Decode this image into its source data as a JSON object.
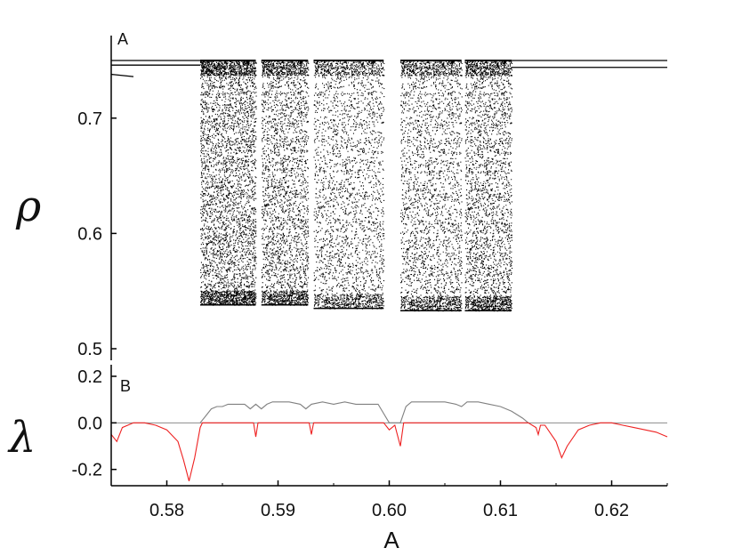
{
  "chart_data": [
    {
      "panel": "A",
      "type": "scatter",
      "title": "",
      "xlabel": "A",
      "ylabel": "ρ",
      "xlim": [
        0.575,
        0.625
      ],
      "ylim": [
        0.5,
        0.75
      ],
      "yticks": [
        0.5,
        0.6,
        0.7
      ],
      "ytick_labels": [
        "0.5",
        "0.6",
        "0.7"
      ],
      "grid": false,
      "color": "#000000",
      "periodic_branches_left": {
        "x": [
          0.575,
          0.583
        ],
        "y_upper": 0.75,
        "y_lower": 0.746
      },
      "periodic_branches_right": {
        "x": [
          0.611,
          0.625
        ],
        "y_upper": 0.75,
        "y_lower": 0.744
      },
      "short_branch": {
        "x": [
          0.575,
          0.577
        ],
        "y": [
          0.738,
          0.736
        ]
      },
      "chaotic_bands": [
        {
          "x_start": 0.583,
          "x_end": 0.588,
          "y_min": 0.538,
          "y_max": 0.75
        },
        {
          "x_start": 0.5885,
          "x_end": 0.5927,
          "y_min": 0.538,
          "y_max": 0.75
        },
        {
          "x_start": 0.5932,
          "x_end": 0.5995,
          "y_min": 0.535,
          "y_max": 0.75
        },
        {
          "x_start": 0.601,
          "x_end": 0.6065,
          "y_min": 0.533,
          "y_max": 0.75
        },
        {
          "x_start": 0.6068,
          "x_end": 0.611,
          "y_min": 0.533,
          "y_max": 0.75
        }
      ],
      "periodic_windows": [
        0.5882,
        0.593,
        0.6,
        0.6066
      ]
    },
    {
      "panel": "B",
      "type": "line",
      "title": "",
      "xlabel": "A",
      "ylabel": "λ",
      "xlim": [
        0.575,
        0.625
      ],
      "ylim": [
        -0.27,
        0.2
      ],
      "xticks": [
        0.58,
        0.59,
        0.6,
        0.61,
        0.62
      ],
      "xtick_labels": [
        "0.58",
        "0.59",
        "0.60",
        "0.61",
        "0.62"
      ],
      "yticks": [
        -0.2,
        0.0,
        0.2
      ],
      "ytick_labels": [
        "-0.2",
        "0.0",
        "0.2"
      ],
      "zero_line_color": "#8c8c8c",
      "series": [
        {
          "color": "#808080",
          "points": [
            [
              0.583,
              0.0
            ],
            [
              0.5835,
              0.03
            ],
            [
              0.584,
              0.06
            ],
            [
              0.5845,
              0.07
            ],
            [
              0.585,
              0.07
            ],
            [
              0.5855,
              0.08
            ],
            [
              0.586,
              0.08
            ],
            [
              0.587,
              0.08
            ],
            [
              0.5875,
              0.06
            ],
            [
              0.588,
              0.08
            ],
            [
              0.5885,
              0.06
            ],
            [
              0.589,
              0.08
            ],
            [
              0.5895,
              0.09
            ],
            [
              0.59,
              0.09
            ],
            [
              0.591,
              0.09
            ],
            [
              0.592,
              0.08
            ],
            [
              0.5925,
              0.06
            ],
            [
              0.593,
              0.08
            ],
            [
              0.594,
              0.09
            ],
            [
              0.595,
              0.08
            ],
            [
              0.596,
              0.09
            ],
            [
              0.597,
              0.08
            ],
            [
              0.598,
              0.08
            ],
            [
              0.599,
              0.08
            ],
            [
              0.6,
              0.0
            ],
            [
              0.601,
              0.0
            ],
            [
              0.6015,
              0.07
            ],
            [
              0.602,
              0.09
            ],
            [
              0.603,
              0.09
            ],
            [
              0.604,
              0.09
            ],
            [
              0.605,
              0.09
            ],
            [
              0.606,
              0.08
            ],
            [
              0.6065,
              0.07
            ],
            [
              0.607,
              0.09
            ],
            [
              0.608,
              0.09
            ],
            [
              0.609,
              0.08
            ],
            [
              0.61,
              0.07
            ],
            [
              0.611,
              0.05
            ],
            [
              0.612,
              0.02
            ],
            [
              0.6125,
              0.0
            ]
          ]
        },
        {
          "color": "#ee2222",
          "points": [
            [
              0.575,
              -0.05
            ],
            [
              0.5755,
              -0.08
            ],
            [
              0.576,
              -0.02
            ],
            [
              0.577,
              0.0
            ],
            [
              0.578,
              0.0
            ],
            [
              0.579,
              -0.01
            ],
            [
              0.58,
              -0.03
            ],
            [
              0.581,
              -0.08
            ],
            [
              0.5815,
              -0.16
            ],
            [
              0.582,
              -0.25
            ],
            [
              0.5825,
              -0.15
            ],
            [
              0.583,
              -0.02
            ],
            [
              0.5832,
              0.0
            ],
            [
              0.5878,
              0.0
            ],
            [
              0.588,
              -0.06
            ],
            [
              0.5882,
              0.0
            ],
            [
              0.5928,
              0.0
            ],
            [
              0.593,
              -0.05
            ],
            [
              0.5932,
              0.0
            ],
            [
              0.5995,
              0.0
            ],
            [
              0.6,
              -0.03
            ],
            [
              0.6005,
              -0.01
            ],
            [
              0.601,
              -0.1
            ],
            [
              0.6013,
              0.0
            ],
            [
              0.6125,
              0.0
            ],
            [
              0.6132,
              -0.02
            ],
            [
              0.6134,
              -0.05
            ],
            [
              0.6136,
              -0.01
            ],
            [
              0.614,
              -0.01
            ],
            [
              0.615,
              -0.08
            ],
            [
              0.6155,
              -0.15
            ],
            [
              0.616,
              -0.1
            ],
            [
              0.617,
              -0.03
            ],
            [
              0.618,
              -0.01
            ],
            [
              0.619,
              0.0
            ],
            [
              0.62,
              0.0
            ],
            [
              0.621,
              -0.01
            ],
            [
              0.622,
              -0.02
            ],
            [
              0.623,
              -0.03
            ],
            [
              0.624,
              -0.04
            ],
            [
              0.625,
              -0.06
            ]
          ]
        }
      ]
    }
  ],
  "labels": {
    "panel_a": "A",
    "panel_b": "B",
    "x_axis_title": "A",
    "y_axis_title_top": "ρ",
    "y_axis_title_bottom": "λ"
  }
}
